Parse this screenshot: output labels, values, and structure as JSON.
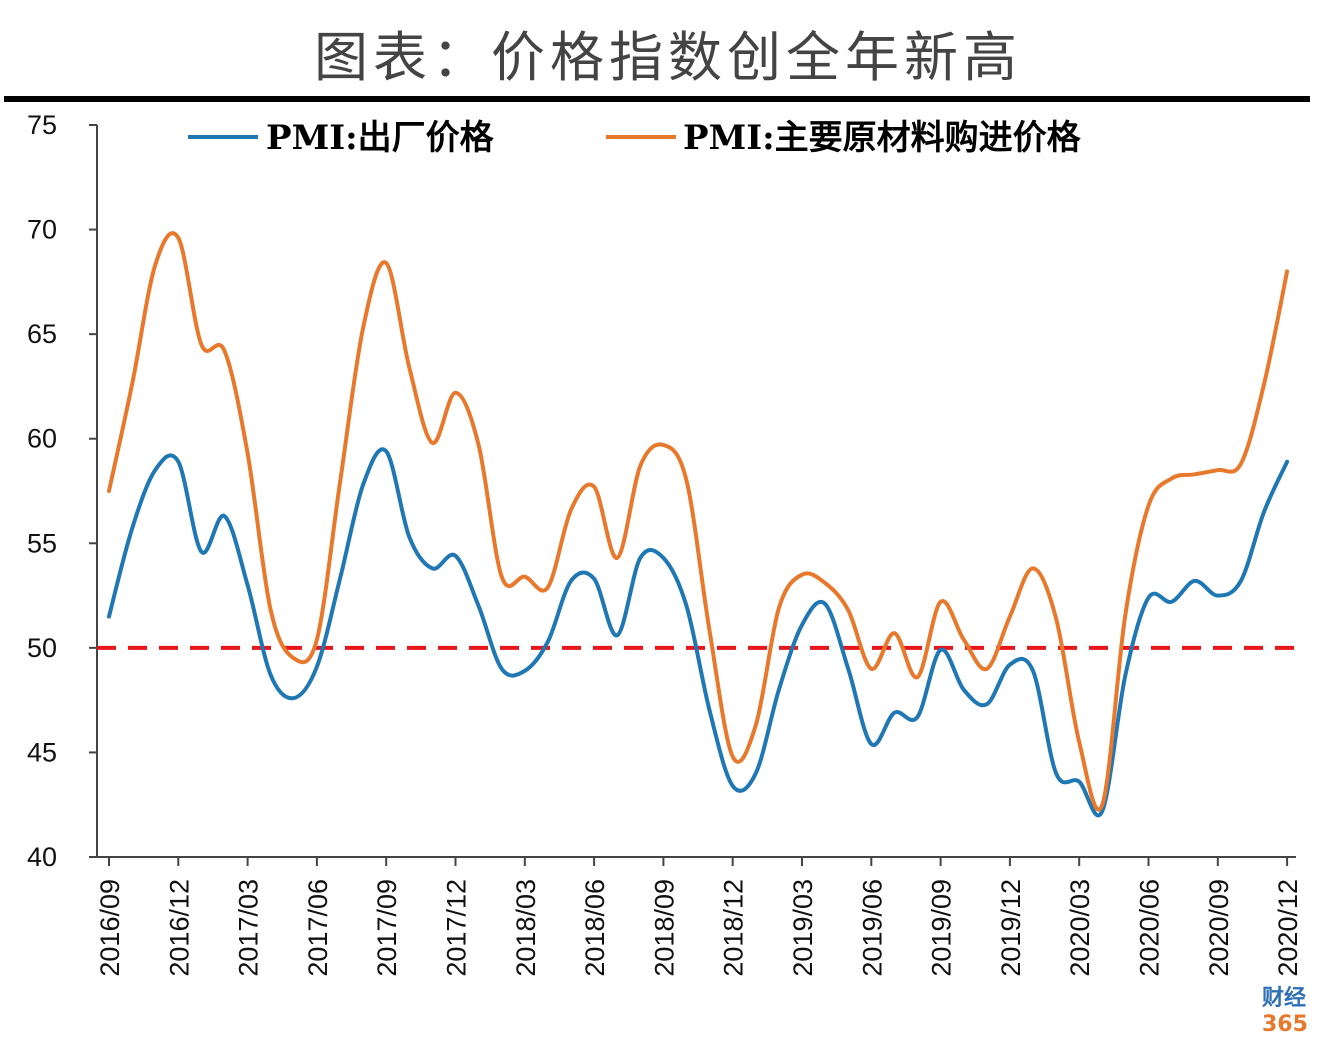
{
  "page_title": "图表：价格指数创全年新高",
  "watermark": {
    "prefix": "财经",
    "suffix": "365"
  },
  "chart_data": {
    "type": "line",
    "ylim": [
      40,
      75
    ],
    "yticks": [
      40,
      45,
      50,
      55,
      60,
      65,
      70,
      75
    ],
    "x": [
      "2016/09",
      "2016/10",
      "2016/11",
      "2016/12",
      "2017/01",
      "2017/02",
      "2017/03",
      "2017/04",
      "2017/05",
      "2017/06",
      "2017/07",
      "2017/08",
      "2017/09",
      "2017/10",
      "2017/11",
      "2017/12",
      "2018/01",
      "2018/02",
      "2018/03",
      "2018/04",
      "2018/05",
      "2018/06",
      "2018/07",
      "2018/08",
      "2018/09",
      "2018/10",
      "2018/11",
      "2018/12",
      "2019/01",
      "2019/02",
      "2019/03",
      "2019/04",
      "2019/05",
      "2019/06",
      "2019/07",
      "2019/08",
      "2019/09",
      "2019/10",
      "2019/11",
      "2019/12",
      "2020/01",
      "2020/02",
      "2020/03",
      "2020/04",
      "2020/05",
      "2020/06",
      "2020/07",
      "2020/08",
      "2020/09",
      "2020/10",
      "2020/11",
      "2020/12"
    ],
    "xtick_labels": [
      "2016/09",
      "2016/12",
      "2017/03",
      "2017/06",
      "2017/09",
      "2017/12",
      "2018/03",
      "2018/06",
      "2018/09",
      "2018/12",
      "2019/03",
      "2019/06",
      "2019/09",
      "2019/12",
      "2020/03",
      "2020/06",
      "2020/09",
      "2020/12"
    ],
    "reference_line": {
      "value": 50,
      "color": "#e8161b",
      "style": "dashed"
    },
    "series": [
      {
        "name": "PMI:出厂价格",
        "color": "#1f77b4",
        "values": [
          51.5,
          55.7,
          58.5,
          58.9,
          54.6,
          56.3,
          53.0,
          48.7,
          47.6,
          49.1,
          53.3,
          57.8,
          59.4,
          55.3,
          53.8,
          54.4,
          52.0,
          49.0,
          48.9,
          50.3,
          53.2,
          53.3,
          50.6,
          54.3,
          54.3,
          52.0,
          47.0,
          43.4,
          44.0,
          48.0,
          51.1,
          52.1,
          49.0,
          45.4,
          46.9,
          46.7,
          49.9,
          48.0,
          47.3,
          49.2,
          48.9,
          44.0,
          43.6,
          42.2,
          48.7,
          52.4,
          52.2,
          53.2,
          52.5,
          53.2,
          56.5,
          58.9
        ]
      },
      {
        "name": "PMI:主要原材料购进价格",
        "color": "#e8792c",
        "values": [
          57.5,
          62.6,
          68.3,
          69.6,
          64.5,
          64.2,
          59.3,
          51.8,
          49.5,
          50.4,
          57.9,
          65.3,
          68.4,
          63.4,
          59.8,
          62.2,
          59.7,
          53.4,
          53.4,
          52.9,
          56.6,
          57.7,
          54.3,
          58.7,
          59.7,
          58.0,
          50.8,
          44.8,
          46.3,
          51.9,
          53.5,
          53.1,
          51.8,
          49.0,
          50.7,
          48.6,
          52.2,
          50.4,
          49.0,
          51.5,
          53.8,
          51.4,
          45.5,
          42.5,
          51.6,
          56.8,
          58.1,
          58.3,
          58.5,
          58.8,
          62.6,
          68.0
        ]
      }
    ]
  }
}
